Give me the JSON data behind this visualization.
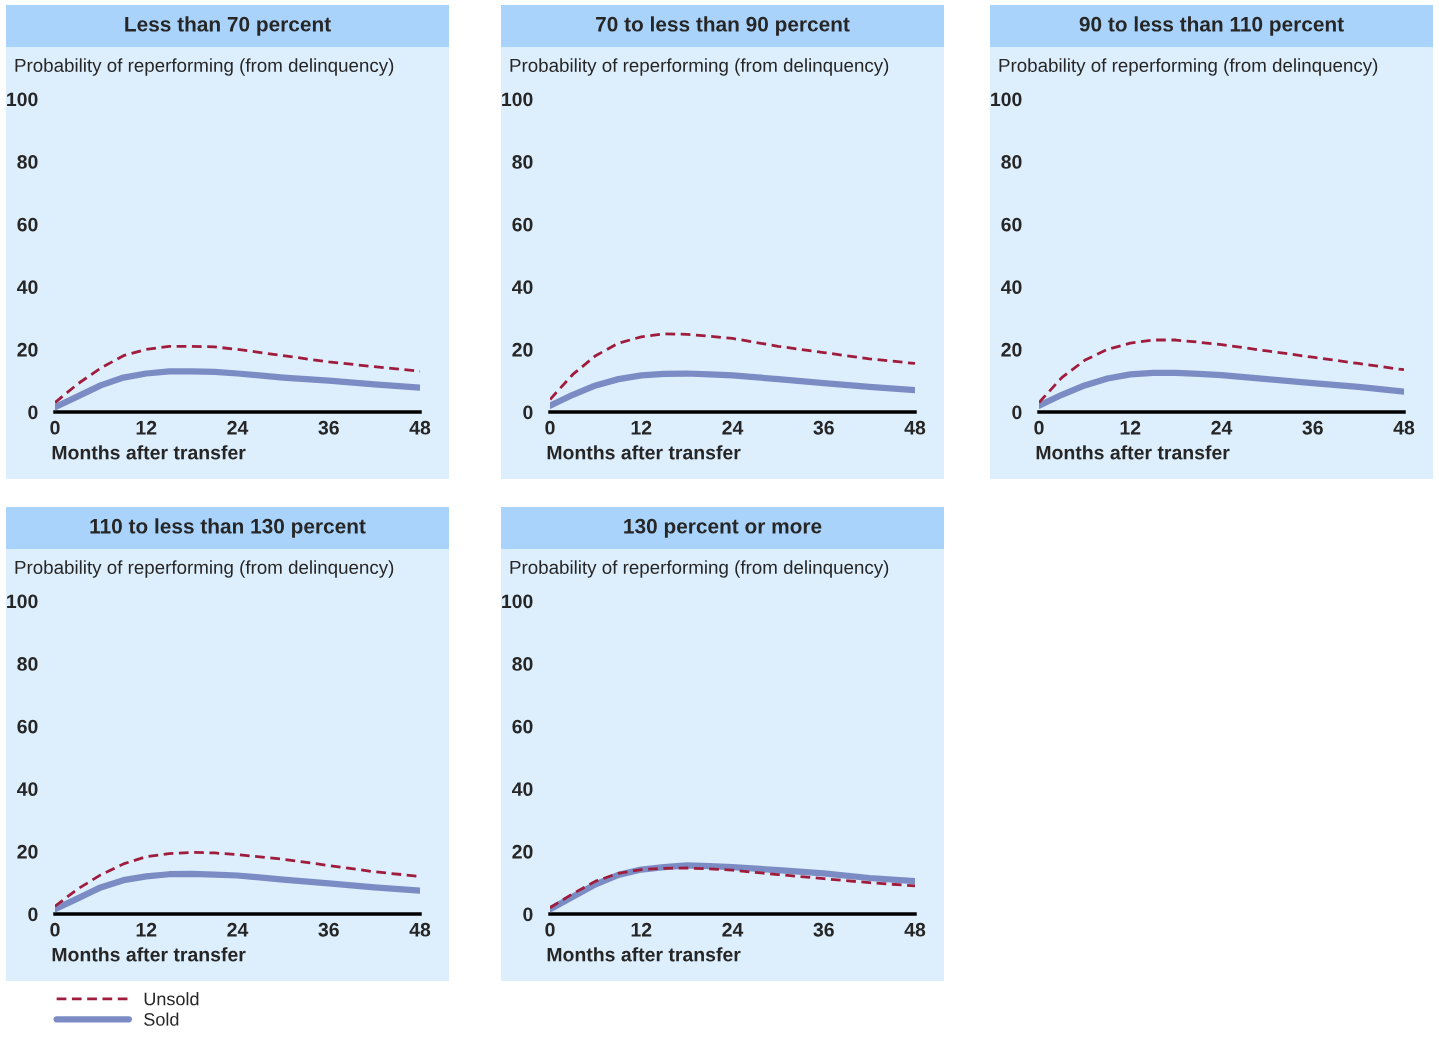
{
  "chart_data": [
    {
      "type": "line",
      "title": "Less than 70 percent",
      "ylabel": "Probability of reperforming (from delinquency)",
      "xlabel": "Months after transfer",
      "x": [
        0,
        3,
        6,
        9,
        12,
        15,
        18,
        21,
        24,
        30,
        36,
        42,
        48
      ],
      "xlim": [
        0,
        48
      ],
      "xticks": [
        0,
        12,
        24,
        36,
        48
      ],
      "ylim": [
        0,
        100
      ],
      "yticks": [
        0,
        20,
        40,
        60,
        80,
        100
      ],
      "legend": "bottom left",
      "series": [
        {
          "name": "Unsold",
          "color": "#a01c3c",
          "line_style": "dashed",
          "values": [
            3,
            9,
            14,
            18,
            20,
            21,
            21,
            20.8,
            20,
            18,
            16,
            14.5,
            13
          ]
        },
        {
          "name": "Sold",
          "color": "#7b8cc4",
          "line_style": "solid",
          "values": [
            1.5,
            5,
            8.5,
            11,
            12.3,
            13,
            13,
            12.8,
            12.3,
            11,
            10,
            8.8,
            7.8
          ]
        }
      ]
    },
    {
      "type": "line",
      "title": "70 to less than 90 percent",
      "ylabel": "Probability of reperforming (from delinquency)",
      "xlabel": "Months after transfer",
      "x": [
        0,
        3,
        6,
        9,
        12,
        15,
        18,
        21,
        24,
        30,
        36,
        42,
        48
      ],
      "xlim": [
        0,
        48
      ],
      "xticks": [
        0,
        12,
        24,
        36,
        48
      ],
      "ylim": [
        0,
        100
      ],
      "yticks": [
        0,
        20,
        40,
        60,
        80,
        100
      ],
      "series": [
        {
          "name": "Unsold",
          "color": "#a01c3c",
          "line_style": "dashed",
          "values": [
            4,
            12,
            18,
            22,
            24,
            25,
            24.8,
            24.2,
            23.5,
            21,
            19,
            17,
            15.5
          ]
        },
        {
          "name": "Sold",
          "color": "#7b8cc4",
          "line_style": "solid",
          "values": [
            2,
            5.5,
            8.5,
            10.5,
            11.7,
            12.2,
            12.3,
            12,
            11.7,
            10.5,
            9.2,
            8,
            7
          ]
        }
      ]
    },
    {
      "type": "line",
      "title": "90 to less than 110 percent",
      "ylabel": "Probability of reperforming (from delinquency)",
      "xlabel": "Months after transfer",
      "x": [
        0,
        3,
        6,
        9,
        12,
        15,
        18,
        21,
        24,
        30,
        36,
        42,
        48
      ],
      "xlim": [
        0,
        48
      ],
      "xticks": [
        0,
        12,
        24,
        36,
        48
      ],
      "ylim": [
        0,
        100
      ],
      "yticks": [
        0,
        20,
        40,
        60,
        80,
        100
      ],
      "series": [
        {
          "name": "Unsold",
          "color": "#a01c3c",
          "line_style": "dashed",
          "values": [
            3,
            11,
            16.5,
            20,
            22,
            23,
            23,
            22.3,
            21.5,
            19.5,
            17.5,
            15.5,
            13.5
          ]
        },
        {
          "name": "Sold",
          "color": "#7b8cc4",
          "line_style": "solid",
          "values": [
            2,
            5.5,
            8.5,
            10.7,
            12,
            12.5,
            12.5,
            12.2,
            11.8,
            10.5,
            9.2,
            8,
            6.5
          ]
        }
      ]
    },
    {
      "type": "line",
      "title": "110 to less than 130 percent",
      "ylabel": "Probability of reperforming (from delinquency)",
      "xlabel": "Months after transfer",
      "x": [
        0,
        3,
        6,
        9,
        12,
        15,
        18,
        21,
        24,
        30,
        36,
        42,
        48
      ],
      "xlim": [
        0,
        48
      ],
      "xticks": [
        0,
        12,
        24,
        36,
        48
      ],
      "ylim": [
        0,
        100
      ],
      "yticks": [
        0,
        20,
        40,
        60,
        80,
        100
      ],
      "series": [
        {
          "name": "Unsold",
          "color": "#a01c3c",
          "line_style": "dashed",
          "values": [
            2.5,
            8,
            12.5,
            16,
            18.3,
            19.3,
            19.7,
            19.5,
            19,
            17.5,
            15.5,
            13.5,
            12
          ]
        },
        {
          "name": "Sold",
          "color": "#7b8cc4",
          "line_style": "solid",
          "values": [
            1.5,
            5,
            8.5,
            10.8,
            12,
            12.7,
            12.8,
            12.6,
            12.3,
            11,
            9.8,
            8.5,
            7.5
          ]
        }
      ]
    },
    {
      "type": "line",
      "title": "130 percent or more",
      "ylabel": "Probability of reperforming (from delinquency)",
      "xlabel": "Months after transfer",
      "x": [
        0,
        3,
        6,
        9,
        12,
        15,
        18,
        21,
        24,
        30,
        36,
        42,
        48
      ],
      "xlim": [
        0,
        48
      ],
      "xticks": [
        0,
        12,
        24,
        36,
        48
      ],
      "ylim": [
        0,
        100
      ],
      "yticks": [
        0,
        20,
        40,
        60,
        80,
        100
      ],
      "series": [
        {
          "name": "Unsold",
          "color": "#a01c3c",
          "line_style": "dashed",
          "values": [
            2,
            6.5,
            10.5,
            13,
            14.2,
            14.6,
            14.7,
            14.4,
            14,
            12.6,
            11.3,
            10,
            9
          ]
        },
        {
          "name": "Sold",
          "color": "#7b8cc4",
          "line_style": "solid",
          "values": [
            1.5,
            5.5,
            9.5,
            12.5,
            14.2,
            15,
            15.5,
            15.3,
            15,
            14,
            13,
            11.5,
            10.5
          ]
        }
      ]
    }
  ]
}
